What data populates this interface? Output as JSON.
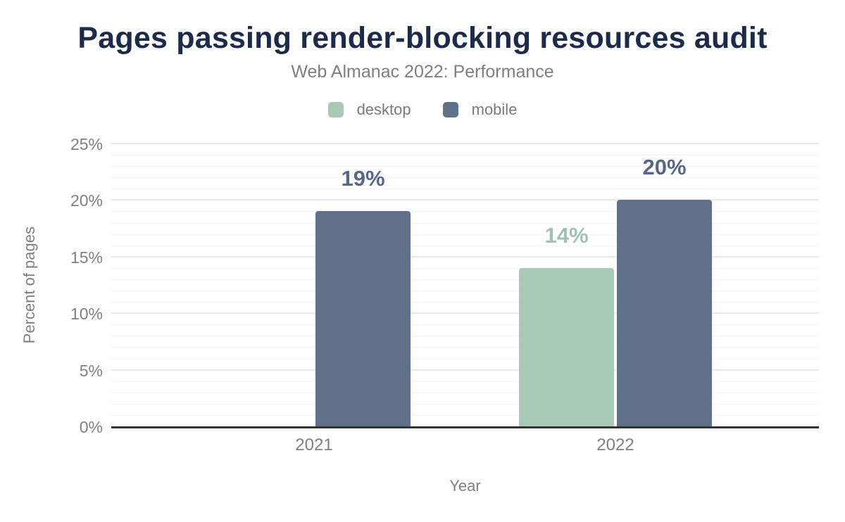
{
  "style": {
    "background": "#ffffff",
    "title_color": "#1c2b4a",
    "text_color": "#7f7f7f",
    "axis_line_color": "#333333",
    "grid_major_color": "#e8e8e8",
    "grid_minor_color": "#f5f5f5"
  },
  "legend": {
    "items": [
      {
        "label": "desktop",
        "color": "#a8c9b5"
      },
      {
        "label": "mobile",
        "color": "#5f7189"
      }
    ]
  },
  "chart_data": {
    "type": "bar",
    "title": "Pages passing render-blocking resources audit",
    "subtitle": "Web Almanac 2022: Performance",
    "categories": [
      "2021",
      "2022"
    ],
    "series": [
      {
        "name": "desktop",
        "color": "#a8c9b5",
        "label_color": "#9fc3ae",
        "values": [
          null,
          14
        ],
        "data_labels": [
          null,
          "14%"
        ]
      },
      {
        "name": "mobile",
        "color": "#5f7189",
        "label_color": "#56688a",
        "values": [
          19,
          20
        ],
        "data_labels": [
          "19%",
          "20%"
        ]
      }
    ],
    "xlabel": "Year",
    "ylabel": "Percent of pages",
    "ylim": [
      0,
      25
    ],
    "yticks": [
      {
        "value": 0,
        "label": "0%"
      },
      {
        "value": 5,
        "label": "5%"
      },
      {
        "value": 10,
        "label": "10%"
      },
      {
        "value": 15,
        "label": "15%"
      },
      {
        "value": 20,
        "label": "20%"
      },
      {
        "value": 25,
        "label": "25%"
      }
    ],
    "y_major_step": 5,
    "y_minor_step": 1,
    "grid": true,
    "legend_position": "top"
  }
}
